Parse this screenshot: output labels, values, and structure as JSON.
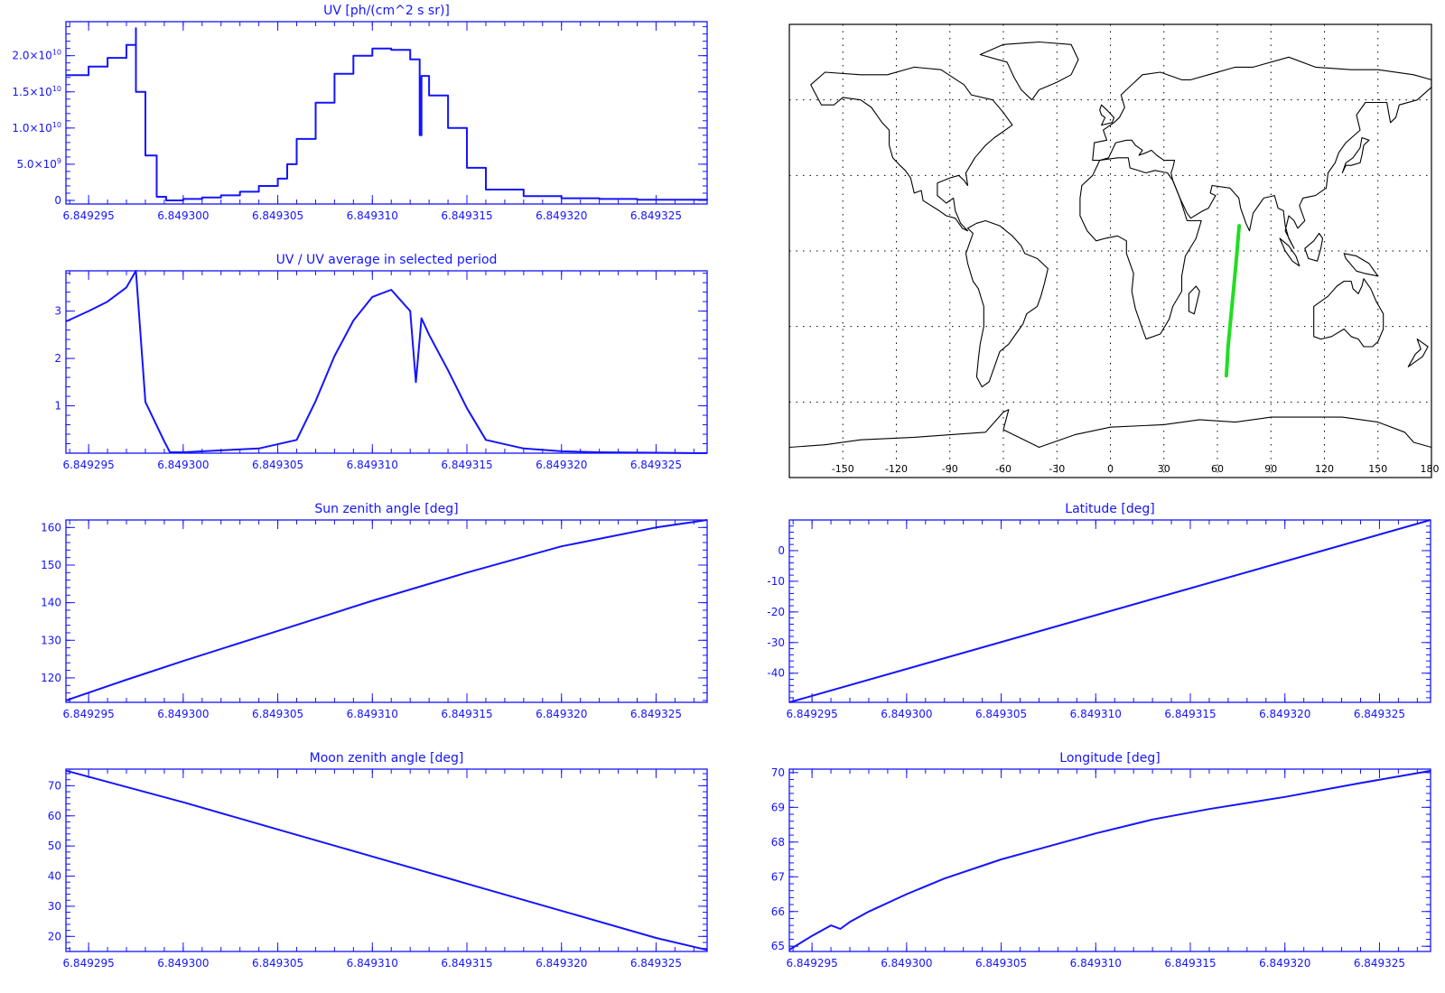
{
  "colors": {
    "plot": "#1414ff",
    "map_outline": "#000000",
    "track": "#22dd22",
    "background": "#ffffff"
  },
  "chart_data": [
    {
      "id": "uv",
      "type": "line",
      "style": "step",
      "title": "UV [ph/(cm^2 s sr)]",
      "xlabel": "",
      "ylabel": "",
      "xlim": [
        6.8492938,
        6.8493277
      ],
      "ylim": [
        -500000000.0,
        24700000000.0
      ],
      "xticks": [
        6.849295,
        6.8493,
        6.849305,
        6.84931,
        6.849315,
        6.84932,
        6.849325
      ],
      "xtick_labels": [
        "6.849295",
        "6.849300",
        "6.849305",
        "6.849310",
        "6.849315",
        "6.849320",
        "6.849325"
      ],
      "yticks": [
        0,
        5000000000.0,
        10000000000.0,
        15000000000.0,
        20000000000.0
      ],
      "ytick_labels": [
        {
          "mant": "0",
          "exp": ""
        },
        {
          "mant": "5.0×10",
          "exp": "9"
        },
        {
          "mant": "1.0×10",
          "exp": "10"
        },
        {
          "mant": "1.5×10",
          "exp": "10"
        },
        {
          "mant": "2.0×10",
          "exp": "10"
        }
      ],
      "x": [
        6.8492938,
        6.849295,
        6.849296,
        6.849297,
        6.8492975,
        6.849297501,
        6.849298,
        6.8492985,
        6.8492986,
        6.849299,
        6.8492991,
        6.8492993,
        6.8493,
        6.849301,
        6.849302,
        6.849303,
        6.849304,
        6.849305,
        6.8493055,
        6.849306,
        6.849307,
        6.849308,
        6.849309,
        6.84931,
        6.849311,
        6.849311,
        6.849312,
        6.8493125,
        6.8493126,
        6.849313,
        6.849314,
        6.849315,
        6.849316,
        6.849318,
        6.84932,
        6.849322,
        6.849324,
        6.8493277
      ],
      "values": [
        17300000000.0,
        18500000000.0,
        19700000000.0,
        21500000000.0,
        23800000000.0,
        15000000000.0,
        6200000000.0,
        6200000000.0,
        500000000.0,
        500000000.0,
        0.0,
        0.0,
        200000000.0,
        400000000.0,
        700000000.0,
        1200000000.0,
        2000000000.0,
        3000000000.0,
        5000000000.0,
        8500000000.0,
        13500000000.0,
        17500000000.0,
        20000000000.0,
        21000000000.0,
        20800000000.0,
        20800000000.0,
        19500000000.0,
        9000000000.0,
        17200000000.0,
        14500000000.0,
        10000000000.0,
        4500000000.0,
        1500000000.0,
        600000000.0,
        300000000.0,
        200000000.0,
        100000000.0,
        50000000.0
      ]
    },
    {
      "id": "uv_ratio",
      "type": "line",
      "title": "UV / UV average in selected period",
      "xlabel": "",
      "ylabel": "",
      "xlim": [
        6.8492938,
        6.8493277
      ],
      "ylim": [
        0,
        3.85
      ],
      "xticks": [
        6.849295,
        6.8493,
        6.849305,
        6.84931,
        6.849315,
        6.84932,
        6.849325
      ],
      "xtick_labels": [
        "6.849295",
        "6.849300",
        "6.849305",
        "6.849310",
        "6.849315",
        "6.849320",
        "6.849325"
      ],
      "yticks": [
        1,
        2,
        3
      ],
      "ytick_labels": [
        "1",
        "2",
        "3"
      ],
      "x": [
        6.8492938,
        6.849295,
        6.849296,
        6.849297,
        6.8492975,
        6.849298,
        6.849299,
        6.8492993,
        6.8493,
        6.849302,
        6.849304,
        6.849306,
        6.849307,
        6.849308,
        6.849309,
        6.84931,
        6.849311,
        6.849312,
        6.8493123,
        6.8493126,
        6.849313,
        6.849314,
        6.849315,
        6.849316,
        6.849318,
        6.84932,
        6.849322,
        6.849325,
        6.8493277
      ],
      "values": [
        2.78,
        3.0,
        3.2,
        3.5,
        3.85,
        1.08,
        0.25,
        0.02,
        0.02,
        0.06,
        0.1,
        0.28,
        1.1,
        2.05,
        2.8,
        3.3,
        3.45,
        3.0,
        1.5,
        2.85,
        2.5,
        1.75,
        0.95,
        0.28,
        0.1,
        0.04,
        0.02,
        0.01,
        0.0
      ]
    },
    {
      "id": "sun_zenith",
      "type": "line",
      "title": "Sun zenith angle [deg]",
      "xlabel": "",
      "ylabel": "",
      "xlim": [
        6.8492938,
        6.8493277
      ],
      "ylim": [
        113.5,
        162
      ],
      "xticks": [
        6.849295,
        6.8493,
        6.849305,
        6.84931,
        6.849315,
        6.84932,
        6.849325
      ],
      "xtick_labels": [
        "6.849295",
        "6.849300",
        "6.849305",
        "6.849310",
        "6.849315",
        "6.849320",
        "6.849325"
      ],
      "yticks": [
        120,
        130,
        140,
        150,
        160
      ],
      "ytick_labels": [
        "120",
        "130",
        "140",
        "150",
        "160"
      ],
      "x": [
        6.8492938,
        6.849297,
        6.8493,
        6.849305,
        6.84931,
        6.849315,
        6.84932,
        6.849325,
        6.8493277
      ],
      "values": [
        114,
        119.5,
        124.5,
        132.5,
        140.5,
        148,
        155,
        160,
        162
      ]
    },
    {
      "id": "moon_zenith",
      "type": "line",
      "title": "Moon zenith angle [deg]",
      "xlabel": "",
      "ylabel": "",
      "xlim": [
        6.8492938,
        6.8493277
      ],
      "ylim": [
        15,
        75.5
      ],
      "xticks": [
        6.849295,
        6.8493,
        6.849305,
        6.84931,
        6.849315,
        6.84932,
        6.849325
      ],
      "xtick_labels": [
        "6.849295",
        "6.849300",
        "6.849305",
        "6.849310",
        "6.849315",
        "6.849320",
        "6.849325"
      ],
      "yticks": [
        20,
        30,
        40,
        50,
        60,
        70
      ],
      "ytick_labels": [
        "20",
        "30",
        "40",
        "50",
        "60",
        "70"
      ],
      "x": [
        6.8492938,
        6.8493,
        6.849305,
        6.84931,
        6.849315,
        6.84932,
        6.849325,
        6.8493277
      ],
      "values": [
        75,
        64.5,
        55.5,
        46.5,
        37.5,
        28.5,
        19.5,
        15.5
      ]
    },
    {
      "id": "latitude",
      "type": "line",
      "title": "Latitude [deg]",
      "xlabel": "",
      "ylabel": "",
      "xlim": [
        6.8492938,
        6.8493277
      ],
      "ylim": [
        -49.5,
        10
      ],
      "xticks": [
        6.849295,
        6.8493,
        6.849305,
        6.84931,
        6.849315,
        6.84932,
        6.849325
      ],
      "xtick_labels": [
        "6.849295",
        "6.849300",
        "6.849305",
        "6.849310",
        "6.849315",
        "6.849320",
        "6.849325"
      ],
      "yticks": [
        -40,
        -30,
        -20,
        -10,
        0
      ],
      "ytick_labels": [
        "-40",
        "-30",
        "-20",
        "-10",
        "0"
      ],
      "x": [
        6.8492938,
        6.8493277
      ],
      "values": [
        -49.5,
        10
      ]
    },
    {
      "id": "longitude",
      "type": "line",
      "title": "Longitude [deg]",
      "xlabel": "",
      "ylabel": "",
      "xlim": [
        6.8492938,
        6.8493277
      ],
      "ylim": [
        64.85,
        70.1
      ],
      "xticks": [
        6.849295,
        6.8493,
        6.849305,
        6.84931,
        6.849315,
        6.84932,
        6.849325
      ],
      "xtick_labels": [
        "6.849295",
        "6.849300",
        "6.849305",
        "6.849310",
        "6.849315",
        "6.849320",
        "6.849325"
      ],
      "yticks": [
        65,
        66,
        67,
        68,
        69,
        70
      ],
      "ytick_labels": [
        "65",
        "66",
        "67",
        "68",
        "69",
        "70"
      ],
      "x": [
        6.8492938,
        6.849295,
        6.849296,
        6.8492965,
        6.849297,
        6.849298,
        6.8493,
        6.849302,
        6.849305,
        6.849308,
        6.84931,
        6.849313,
        6.849316,
        6.84932,
        6.849324,
        6.8493277
      ],
      "values": [
        64.9,
        65.3,
        65.6,
        65.5,
        65.7,
        66.0,
        66.5,
        66.95,
        67.5,
        67.95,
        68.25,
        68.65,
        68.95,
        69.3,
        69.7,
        70.05
      ]
    },
    {
      "id": "map",
      "type": "scatter",
      "title": "",
      "xlabel": "",
      "ylabel": "",
      "xlim": [
        -180,
        180
      ],
      "ylim": [
        -90,
        90
      ],
      "xticks": [
        -150,
        -120,
        -90,
        -60,
        -30,
        0,
        30,
        60,
        90,
        120,
        150,
        180
      ],
      "xtick_labels": [
        "-150",
        "-120",
        "-90",
        "-60",
        "-30",
        "0",
        "30",
        "60",
        "90",
        "120",
        "150",
        "180"
      ],
      "grid": true,
      "track": {
        "lon": [
          72.2,
          71.5,
          70.8,
          70.0,
          69.2,
          68.4,
          67.6,
          66.8,
          66.0,
          65.5,
          65.0
        ],
        "lat": [
          10,
          4,
          -2,
          -8,
          -14,
          -20,
          -26,
          -32,
          -38,
          -44,
          -49.5
        ]
      }
    }
  ]
}
